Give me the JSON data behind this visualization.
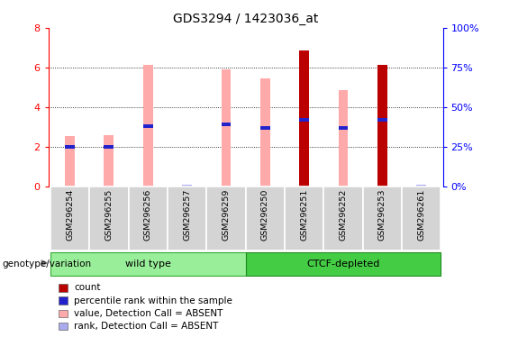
{
  "title": "GDS3294 / 1423036_at",
  "samples": [
    "GSM296254",
    "GSM296255",
    "GSM296256",
    "GSM296257",
    "GSM296259",
    "GSM296250",
    "GSM296251",
    "GSM296252",
    "GSM296253",
    "GSM296261"
  ],
  "count_values": [
    0,
    0,
    0,
    0,
    0,
    0,
    6.85,
    0,
    6.15,
    0
  ],
  "percentile_values": [
    2.0,
    2.0,
    3.05,
    0,
    3.15,
    2.95,
    3.35,
    2.95,
    3.35,
    0
  ],
  "absent_value_values": [
    2.55,
    2.6,
    6.15,
    0,
    5.9,
    5.45,
    0,
    4.85,
    0,
    0
  ],
  "absent_rank_values": [
    0,
    0,
    0,
    0.1,
    0,
    0,
    0,
    0,
    0,
    0.12
  ],
  "ylim": [
    0,
    8
  ],
  "bar_width": 0.25,
  "count_color": "#bb0000",
  "percentile_color": "#2222cc",
  "absent_value_color": "#ffaaaa",
  "absent_rank_color": "#aaaaee",
  "wt_color": "#99ee99",
  "ctcf_color": "#44cc44",
  "wt_edge": "#33aa33",
  "ctcf_edge": "#228822",
  "legend_items": [
    {
      "label": "count",
      "color": "#bb0000"
    },
    {
      "label": "percentile rank within the sample",
      "color": "#2222cc"
    },
    {
      "label": "value, Detection Call = ABSENT",
      "color": "#ffaaaa"
    },
    {
      "label": "rank, Detection Call = ABSENT",
      "color": "#aaaaee"
    }
  ]
}
